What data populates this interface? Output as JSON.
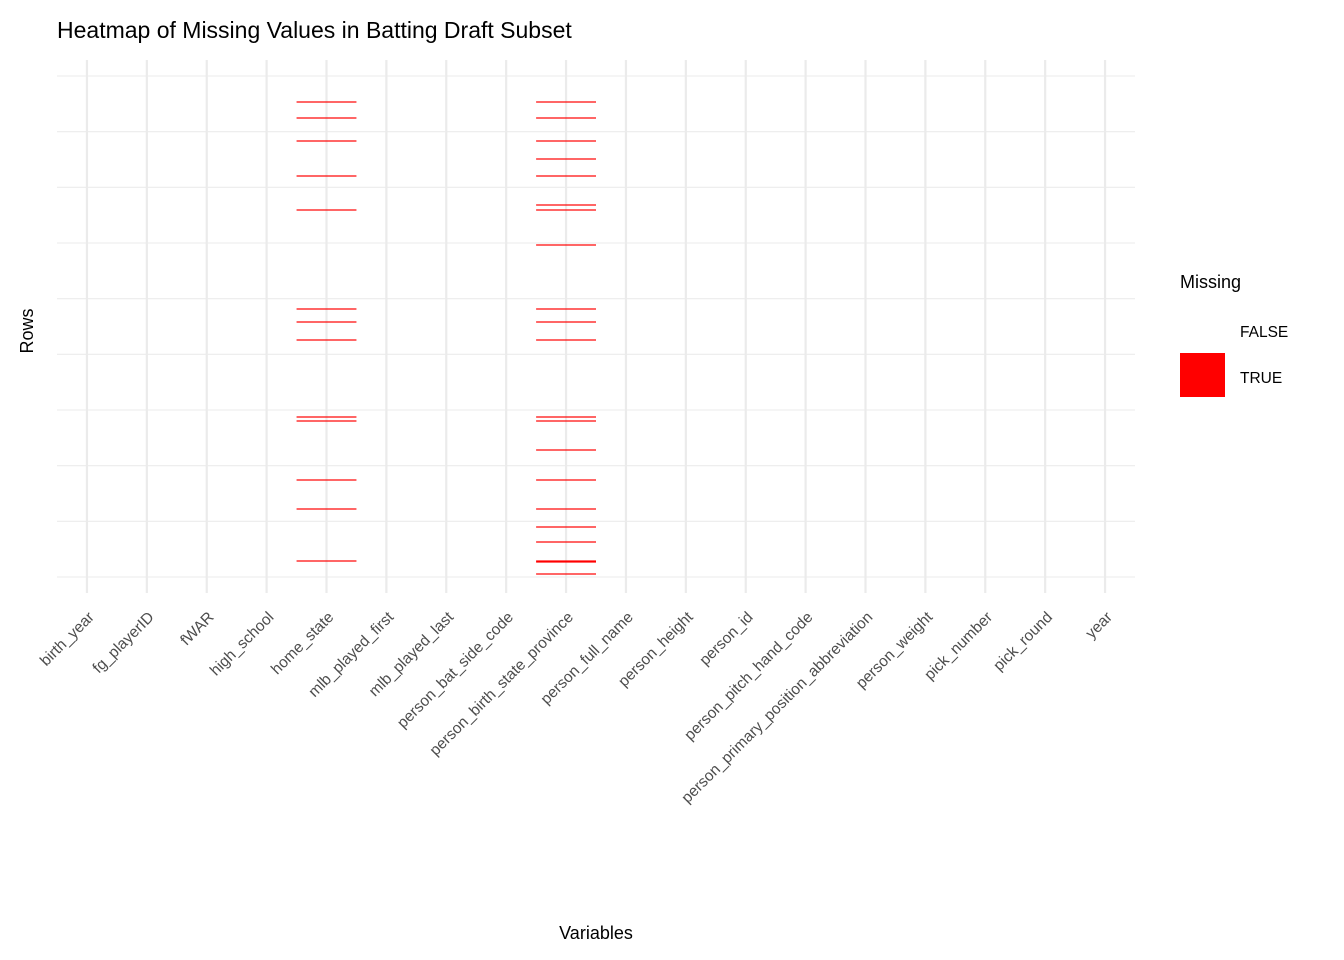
{
  "chart_data": {
    "type": "heatmap",
    "title": "Heatmap of Missing Values in Batting Draft Subset",
    "xlabel": "Variables",
    "ylabel": "Rows",
    "x_categories": [
      "birth_year",
      "fg_playerID",
      "fWAR",
      "high_school",
      "home_state",
      "mlb_played_first",
      "mlb_played_last",
      "person_bat_side_code",
      "person_birth_state_province",
      "person_full_name",
      "person_height",
      "person_id",
      "person_pitch_hand_code",
      "person_primary_position_abbreviation",
      "person_weight",
      "pick_number",
      "pick_round",
      "year"
    ],
    "n_rows": 501,
    "grid": true,
    "legend": {
      "title": "Missing",
      "position": "right",
      "entries": [
        {
          "label": "FALSE",
          "color": "#FFFFFF"
        },
        {
          "label": "TRUE",
          "color": "#FF0000"
        }
      ]
    },
    "missing_rows": {
      "home_state": [
        26,
        42,
        65,
        100,
        134,
        233,
        246,
        264,
        341,
        345,
        404,
        433,
        485
      ],
      "person_birth_state_province": [
        26,
        42,
        65,
        83,
        100,
        129,
        134,
        169,
        233,
        246,
        264,
        341,
        345,
        374,
        404,
        433,
        451,
        466,
        485,
        486,
        498
      ]
    }
  }
}
